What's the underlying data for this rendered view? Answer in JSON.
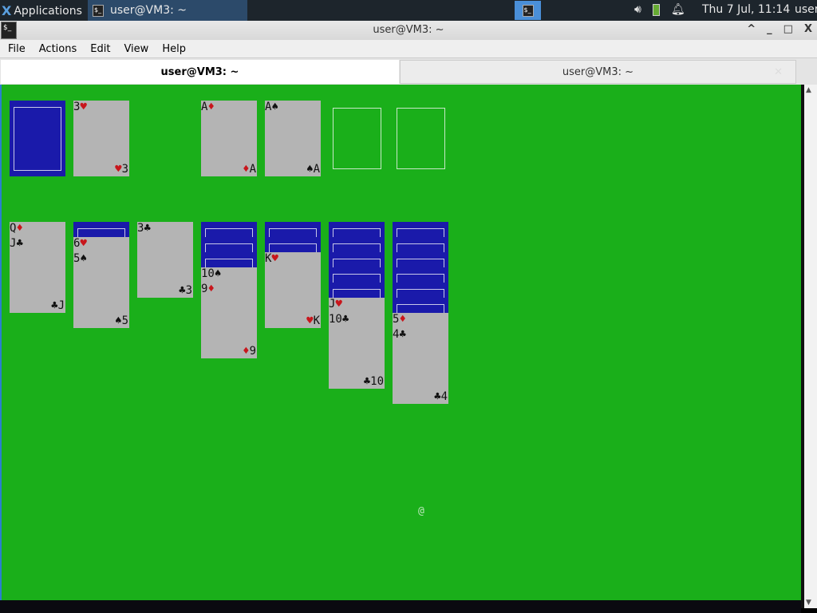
{
  "panel": {
    "applications": "Applications",
    "task": "user@VM3: ~",
    "clock": "Thu  7 Jul, 11:14",
    "user": "user"
  },
  "window": {
    "title": "user@VM3: ~",
    "controls": [
      "^",
      "_",
      "□",
      "X"
    ]
  },
  "menu": [
    "File",
    "Actions",
    "Edit",
    "View",
    "Help"
  ],
  "tabs": [
    {
      "label": "user@VM3: ~",
      "active": true
    },
    {
      "label": "user@VM3: ~",
      "active": false
    }
  ],
  "colors": {
    "felt": "#1aaf1a",
    "card": "#b4b4b4",
    "back": "#1a1aaa",
    "red": "#c8161c"
  },
  "game": {
    "stock": "face-down",
    "waste": {
      "rank": "3",
      "suit": "♥"
    },
    "foundations": [
      {
        "rank": "A",
        "suit": "♦"
      },
      {
        "rank": "A",
        "suit": "♠"
      },
      null,
      null
    ],
    "tableau": [
      {
        "hidden": 0,
        "cards": [
          {
            "rank": "Q",
            "suit": "♦"
          },
          {
            "rank": "J",
            "suit": "♣"
          }
        ]
      },
      {
        "hidden": 1,
        "cards": [
          {
            "rank": "6",
            "suit": "♥"
          },
          {
            "rank": "5",
            "suit": "♠"
          }
        ]
      },
      {
        "hidden": 0,
        "cards": [
          {
            "rank": "3",
            "suit": "♣"
          }
        ]
      },
      {
        "hidden": 3,
        "cards": [
          {
            "rank": "10",
            "suit": "♠"
          },
          {
            "rank": "9",
            "suit": "♦"
          }
        ]
      },
      {
        "hidden": 2,
        "cards": [
          {
            "rank": "K",
            "suit": "♥"
          }
        ]
      },
      {
        "hidden": 5,
        "cards": [
          {
            "rank": "J",
            "suit": "♥"
          },
          {
            "rank": "10",
            "suit": "♣"
          }
        ]
      },
      {
        "hidden": 6,
        "cards": [
          {
            "rank": "5",
            "suit": "♦"
          },
          {
            "rank": "4",
            "suit": "♣"
          }
        ]
      }
    ],
    "cursor": "@"
  }
}
